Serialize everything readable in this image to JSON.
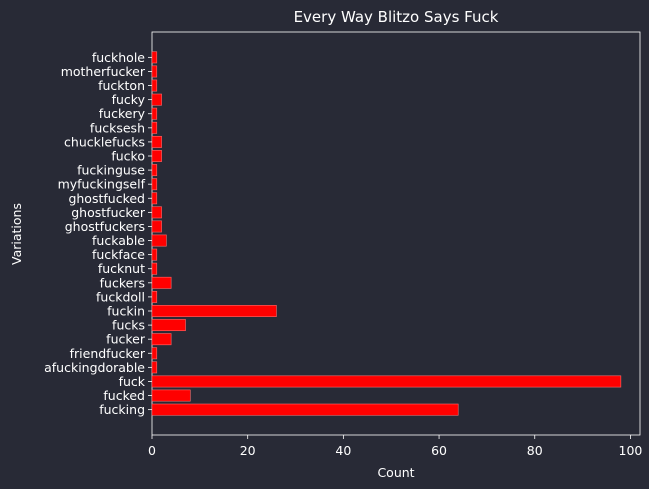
{
  "chart_data": {
    "type": "bar",
    "orientation": "horizontal",
    "title": "Every Way Blitzo Says Fuck",
    "xlabel": "Count",
    "ylabel": "Variations",
    "xlim": [
      0,
      102
    ],
    "xticks": [
      "0",
      "20",
      "40",
      "60",
      "80",
      "100"
    ],
    "grid": false,
    "bar_color": "#ff0000",
    "bar_edge_color": "#ff6b6b",
    "background_color": "#282a36",
    "text_color": "#ffffff",
    "categories": [
      "fucking",
      "fucked",
      "fuck",
      "afuckingdorable",
      "friendfucker",
      "fucker",
      "fucks",
      "fuckin",
      "fuckdoll",
      "fuckers",
      "fucknut",
      "fuckface",
      "fuckable",
      "ghostfuckers",
      "ghostfucker",
      "ghostfucked",
      "myfuckingself",
      "fuckinguse",
      "fucko",
      "chucklefucks",
      "fucksesh",
      "fuckery",
      "fucky",
      "fuckton",
      "motherfucker",
      "fuckhole"
    ],
    "values": [
      64,
      8,
      98,
      1,
      1,
      4,
      7,
      26,
      1,
      4,
      1,
      1,
      3,
      2,
      2,
      1,
      1,
      1,
      2,
      2,
      1,
      1,
      2,
      1,
      1,
      1
    ]
  }
}
